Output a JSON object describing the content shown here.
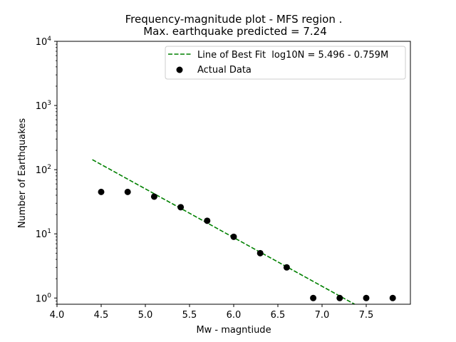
{
  "chart_data": {
    "type": "scatter",
    "title_line1": "Frequency-magnitude plot - MFS region .",
    "title_line2": "Max. earthquake predicted = 7.24",
    "xlabel": "Mw - magntiude",
    "ylabel": "Number of Earthquakes",
    "xlim": [
      4.0,
      8.0
    ],
    "ylim": [
      0.8,
      10000
    ],
    "yscale": "log",
    "x_ticks": [
      4.0,
      4.5,
      5.0,
      5.5,
      6.0,
      6.5,
      7.0,
      7.5
    ],
    "x_tick_labels": [
      "4.0",
      "4.5",
      "5.0",
      "5.5",
      "6.0",
      "6.5",
      "7.0",
      "7.5"
    ],
    "y_ticks": [
      1,
      10,
      100,
      1000,
      10000
    ],
    "y_tick_bases": [
      "10",
      "10",
      "10",
      "10",
      "10"
    ],
    "y_tick_exps": [
      "0",
      "1",
      "2",
      "3",
      "4"
    ],
    "legend_position": "top-right",
    "series": [
      {
        "name": "Line of Best Fit  log10N = 5.496 - 0.759M",
        "kind": "line",
        "style": "dashed",
        "color": "#008000",
        "intercept": 5.496,
        "slope": -0.759,
        "x_range": [
          4.4,
          7.5
        ]
      },
      {
        "name": "Actual Data",
        "kind": "scatter",
        "color": "#000000",
        "x": [
          4.5,
          4.8,
          5.1,
          5.4,
          5.7,
          6.0,
          6.3,
          6.6,
          6.9,
          7.2,
          7.5,
          7.8
        ],
        "y": [
          45,
          45,
          38,
          26,
          16,
          9,
          5,
          3,
          1,
          1,
          1,
          1
        ]
      }
    ]
  }
}
